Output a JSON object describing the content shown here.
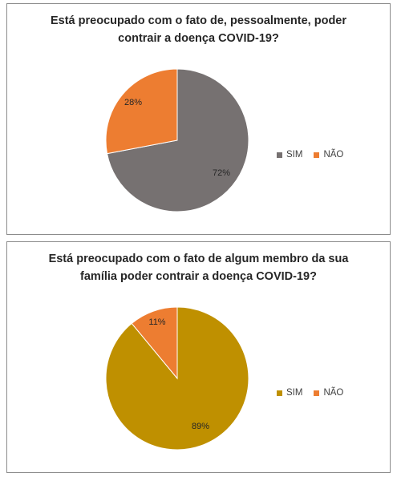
{
  "chart_data": [
    {
      "type": "pie",
      "title": "Está preocupado com o fato de, pessoalmente, poder contrair a doença COVID-19?",
      "categories": [
        "SIM",
        "NÃO"
      ],
      "values": [
        72,
        28
      ],
      "labels": [
        "72%",
        "28%"
      ],
      "colors": [
        "#767171",
        "#ED7D31"
      ],
      "legend_position": "right"
    },
    {
      "type": "pie",
      "title": "Está preocupado com o fato de algum membro da sua família poder contrair a doença COVID-19?",
      "categories": [
        "SIM",
        "NÃO"
      ],
      "values": [
        89,
        11
      ],
      "labels": [
        "89%",
        "11%"
      ],
      "colors": [
        "#BF9000",
        "#ED7D31"
      ],
      "legend_position": "right"
    }
  ]
}
